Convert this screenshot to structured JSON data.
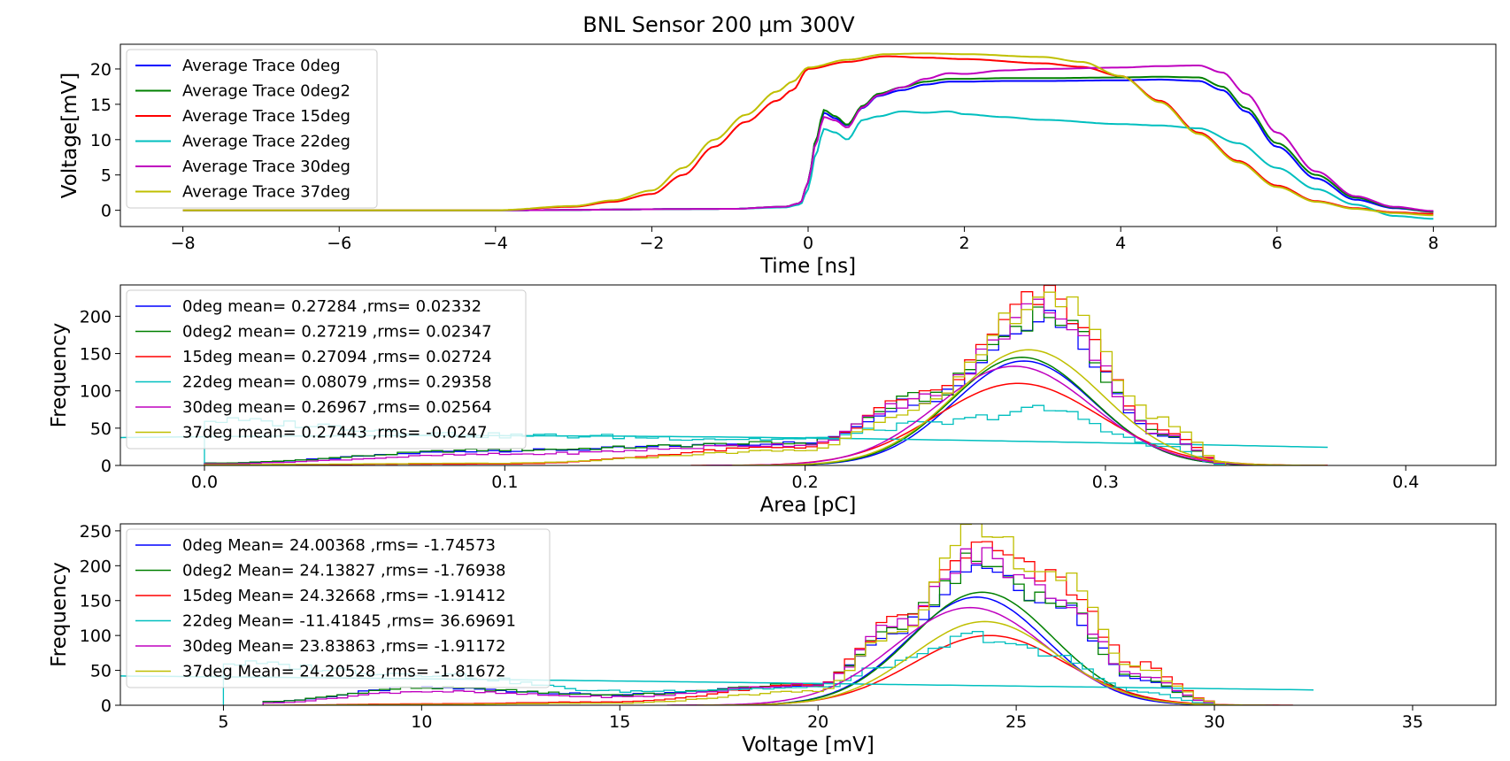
{
  "figure": {
    "title": "BNL Sensor 200 µm 300V"
  },
  "chart_data": [
    {
      "type": "line",
      "title": "BNL Sensor 200 µm 300V",
      "xlabel": "Time [ns]",
      "ylabel": "Voltage[mV]",
      "xlim": [
        -8.8,
        8.8
      ],
      "ylim": [
        -2.3,
        23.5
      ],
      "xticks": [
        -8,
        -6,
        -4,
        -2,
        0,
        2,
        4,
        6,
        8
      ],
      "xtick_labels": [
        "−8",
        "−6",
        "−4",
        "−2",
        "0",
        "2",
        "4",
        "6",
        "8"
      ],
      "yticks": [
        0,
        5,
        10,
        15,
        20
      ],
      "ytick_labels": [
        "0",
        "5",
        "10",
        "15",
        "20"
      ],
      "grid": false,
      "legend_position": "upper-left",
      "series": [
        {
          "name": "Average Trace 0deg",
          "color": "#0000ff",
          "x": [
            -8,
            -4,
            -1,
            -0.3,
            -0.1,
            0,
            0.1,
            0.2,
            0.35,
            0.5,
            0.7,
            0.9,
            1.2,
            1.5,
            1.8,
            2,
            2.5,
            3,
            4,
            4.5,
            5,
            5.3,
            5.6,
            6,
            6.5,
            7,
            7.5,
            8
          ],
          "y": [
            0,
            0,
            0.2,
            0.5,
            1,
            4,
            10,
            13.8,
            13,
            12,
            14.5,
            16.2,
            17,
            17.8,
            18.2,
            18.2,
            18.3,
            18.3,
            18.4,
            18.5,
            18.3,
            17,
            14,
            9,
            4.5,
            1.5,
            0.3,
            -0.2
          ]
        },
        {
          "name": "Average Trace 0deg2",
          "color": "#008000",
          "x": [
            -8,
            -4,
            -1,
            -0.3,
            -0.1,
            0,
            0.1,
            0.2,
            0.35,
            0.5,
            0.7,
            0.9,
            1.2,
            1.5,
            1.8,
            2,
            2.5,
            3,
            4,
            4.5,
            5,
            5.3,
            5.6,
            6,
            6.5,
            7,
            7.5,
            8
          ],
          "y": [
            0,
            0,
            0.2,
            0.5,
            1,
            4,
            10,
            14.2,
            13.3,
            12.1,
            14.8,
            16.5,
            17.4,
            18.2,
            18.6,
            18.6,
            18.7,
            18.7,
            18.8,
            18.9,
            18.8,
            17.5,
            14.5,
            9.5,
            5,
            1.8,
            0.4,
            -0.2
          ]
        },
        {
          "name": "Average Trace 15deg",
          "color": "#ff0000",
          "x": [
            -8,
            -4,
            -3,
            -2.5,
            -2,
            -1.6,
            -1.2,
            -0.8,
            -0.4,
            -0.2,
            0,
            0.5,
            1,
            1.5,
            2,
            3,
            3.5,
            4,
            4.5,
            5,
            5.5,
            6,
            6.5,
            7,
            7.5,
            8
          ],
          "y": [
            0,
            0,
            0.5,
            1.2,
            2.3,
            5,
            9,
            12.5,
            15.5,
            17,
            20,
            21,
            21.8,
            21.6,
            21.4,
            20.8,
            20.3,
            19,
            15.5,
            11,
            7,
            3.5,
            1.3,
            0.3,
            -0.3,
            -0.5
          ]
        },
        {
          "name": "Average Trace 22deg",
          "color": "#00bfbf",
          "x": [
            -8,
            -4,
            -1,
            -0.3,
            -0.1,
            0,
            0.1,
            0.2,
            0.35,
            0.5,
            0.7,
            0.9,
            1.2,
            1.5,
            1.8,
            2,
            2.5,
            3,
            4,
            4.5,
            5,
            5.5,
            6,
            6.5,
            7,
            7.5,
            8
          ],
          "y": [
            0,
            0,
            0.2,
            0.4,
            0.8,
            3,
            8,
            11.5,
            11,
            10,
            12.8,
            13.3,
            14,
            13.8,
            14,
            13.6,
            13.2,
            12.8,
            12.2,
            12,
            11.6,
            9.5,
            6,
            3,
            0.8,
            -0.8,
            -1.2
          ]
        },
        {
          "name": "Average Trace 30deg",
          "color": "#bf00bf",
          "x": [
            -8,
            -4,
            -1,
            -0.3,
            -0.1,
            0,
            0.1,
            0.2,
            0.35,
            0.5,
            0.7,
            0.9,
            1.2,
            1.5,
            1.8,
            2,
            2.5,
            3,
            4,
            4.5,
            5,
            5.3,
            5.6,
            6,
            6.5,
            7,
            7.5,
            8
          ],
          "y": [
            0,
            0,
            0.2,
            0.5,
            1,
            4,
            9.5,
            13.2,
            12.7,
            11.7,
            14.6,
            16.3,
            17.4,
            18.6,
            19.4,
            19.3,
            19.8,
            20,
            20.2,
            20.4,
            20.5,
            19.5,
            16.5,
            11,
            5.5,
            2,
            0.5,
            -0.1
          ]
        },
        {
          "name": "Average Trace 37deg",
          "color": "#bfbf00",
          "x": [
            -8,
            -4,
            -3,
            -2.5,
            -2,
            -1.6,
            -1.2,
            -0.8,
            -0.4,
            -0.2,
            0,
            0.5,
            1,
            1.5,
            2,
            3,
            3.5,
            4,
            4.5,
            5,
            5.5,
            6,
            6.5,
            7,
            7.5,
            8
          ],
          "y": [
            0,
            0,
            0.6,
            1.4,
            2.8,
            6,
            10,
            13.5,
            16.8,
            18.2,
            20.2,
            21.3,
            22.1,
            22.2,
            22.1,
            21.7,
            21,
            19,
            15.3,
            10.8,
            6.8,
            3.3,
            1.2,
            0.2,
            -0.4,
            -0.7
          ]
        }
      ]
    },
    {
      "type": "histogram",
      "xlabel": "Area [pC]",
      "ylabel": "Frequency",
      "xlim": [
        -0.028,
        0.43
      ],
      "ylim": [
        0,
        242
      ],
      "xticks": [
        0.0,
        0.1,
        0.2,
        0.3,
        0.4
      ],
      "xtick_labels": [
        "0.0",
        "0.1",
        "0.2",
        "0.3",
        "0.4"
      ],
      "yticks": [
        0,
        50,
        100,
        150,
        200
      ],
      "ytick_labels": [
        "0",
        "50",
        "100",
        "150",
        "200"
      ],
      "legend_position": "upper-left",
      "series": [
        {
          "name": "0deg mean= 0.27284 ,rms= 0.02332",
          "color": "#0000ff",
          "hist_x": [
            0.0,
            0.1,
            0.2,
            0.24,
            0.28,
            0.32,
            0.34
          ],
          "hist_y": [
            3,
            20,
            30,
            90,
            205,
            40,
            2
          ],
          "fit": {
            "mean": 0.27284,
            "sigma": 0.02332,
            "amplitude": 140
          }
        },
        {
          "name": "0deg2 mean= 0.27219 ,rms= 0.02347",
          "color": "#008000",
          "hist_x": [
            0.0,
            0.1,
            0.2,
            0.24,
            0.28,
            0.32,
            0.34
          ],
          "hist_y": [
            3,
            21,
            30,
            92,
            205,
            40,
            2
          ],
          "fit": {
            "mean": 0.27219,
            "sigma": 0.02347,
            "amplitude": 145
          }
        },
        {
          "name": "15deg mean= 0.27094 ,rms= 0.02724",
          "color": "#ff0000",
          "hist_x": [
            0.0,
            0.1,
            0.2,
            0.24,
            0.28,
            0.32,
            0.34
          ],
          "hist_y": [
            1,
            2,
            25,
            95,
            225,
            45,
            3
          ],
          "fit": {
            "mean": 0.27094,
            "sigma": 0.02724,
            "amplitude": 110
          }
        },
        {
          "name": "22deg mean= 0.08079 ,rms= 0.29358",
          "color": "#00bfbf",
          "hist_x": [
            0.0,
            0.1,
            0.2,
            0.24,
            0.28,
            0.32,
            0.34
          ],
          "hist_y": [
            60,
            40,
            35,
            55,
            75,
            25,
            1
          ],
          "fit": {
            "mean": 0.08079,
            "sigma": 0.29358,
            "amplitude": 40
          }
        },
        {
          "name": "30deg mean= 0.26967 ,rms= 0.02564",
          "color": "#bf00bf",
          "hist_x": [
            0.0,
            0.1,
            0.2,
            0.24,
            0.28,
            0.32,
            0.34
          ],
          "hist_y": [
            2,
            15,
            28,
            90,
            215,
            40,
            2
          ],
          "fit": {
            "mean": 0.26967,
            "sigma": 0.02564,
            "amplitude": 133
          }
        },
        {
          "name": "37deg mean= 0.27443 ,rms= -0.0247",
          "color": "#bfbf00",
          "hist_x": [
            0.0,
            0.1,
            0.2,
            0.24,
            0.28,
            0.32,
            0.34
          ],
          "hist_y": [
            1,
            3,
            20,
            80,
            232,
            60,
            3
          ],
          "fit": {
            "mean": 0.27443,
            "sigma": 0.0247,
            "amplitude": 155
          }
        }
      ]
    },
    {
      "type": "histogram",
      "xlabel": "Voltage [mV]",
      "ylabel": "Frequency",
      "xlim": [
        2.4,
        37.1
      ],
      "ylim": [
        0,
        260
      ],
      "xticks": [
        5,
        10,
        15,
        20,
        25,
        30,
        35
      ],
      "xtick_labels": [
        "5",
        "10",
        "15",
        "20",
        "25",
        "30",
        "35"
      ],
      "yticks": [
        0,
        50,
        100,
        150,
        200,
        250
      ],
      "ytick_labels": [
        "0",
        "50",
        "100",
        "150",
        "200",
        "250"
      ],
      "legend_position": "upper-left",
      "series": [
        {
          "name": "0deg Mean= 24.00368 ,rms= -1.74573",
          "color": "#0000ff",
          "hist_x": [
            6,
            10,
            15,
            20,
            22,
            24,
            26,
            28,
            30
          ],
          "hist_y": [
            5,
            25,
            15,
            30,
            110,
            205,
            150,
            40,
            3
          ],
          "fit": {
            "mean": 24.00368,
            "sigma": 1.74573,
            "amplitude": 155
          }
        },
        {
          "name": "0deg2 Mean= 24.13827 ,rms= -1.76938",
          "color": "#008000",
          "hist_x": [
            6,
            10,
            15,
            20,
            22,
            24,
            26,
            28,
            30
          ],
          "hist_y": [
            5,
            25,
            15,
            30,
            112,
            205,
            150,
            40,
            3
          ],
          "fit": {
            "mean": 24.13827,
            "sigma": 1.76938,
            "amplitude": 162
          }
        },
        {
          "name": "15deg Mean= 24.32668 ,rms= -1.91412",
          "color": "#ff0000",
          "hist_x": [
            6,
            10,
            15,
            20,
            22,
            24,
            26,
            28,
            30
          ],
          "hist_y": [
            0,
            2,
            5,
            30,
            120,
            225,
            180,
            60,
            5
          ],
          "fit": {
            "mean": 24.32668,
            "sigma": 1.91412,
            "amplitude": 100
          }
        },
        {
          "name": "22deg Mean= -11.41845 ,rms= 36.69691",
          "color": "#00bfbf",
          "hist_x": [
            5,
            10,
            15,
            20,
            22,
            24,
            26,
            28,
            30
          ],
          "hist_y": [
            60,
            45,
            20,
            25,
            60,
            100,
            70,
            20,
            2
          ],
          "fit": {
            "mean": -11.41845,
            "sigma": 36.69691,
            "amplitude": 45
          }
        },
        {
          "name": "30deg Mean= 23.83863 ,rms= -1.91172",
          "color": "#bf00bf",
          "hist_x": [
            6,
            10,
            15,
            20,
            22,
            24,
            26,
            28,
            30
          ],
          "hist_y": [
            3,
            20,
            12,
            30,
            115,
            215,
            160,
            45,
            3
          ],
          "fit": {
            "mean": 23.83863,
            "sigma": 1.91172,
            "amplitude": 140
          }
        },
        {
          "name": "37deg Mean= 24.20528 ,rms= -1.81672",
          "color": "#bfbf00",
          "hist_x": [
            6,
            10,
            15,
            20,
            22,
            24,
            26,
            28,
            30
          ],
          "hist_y": [
            0,
            1,
            3,
            20,
            110,
            245,
            190,
            55,
            5
          ],
          "fit": {
            "mean": 24.20528,
            "sigma": 1.81672,
            "amplitude": 120
          }
        }
      ]
    }
  ]
}
